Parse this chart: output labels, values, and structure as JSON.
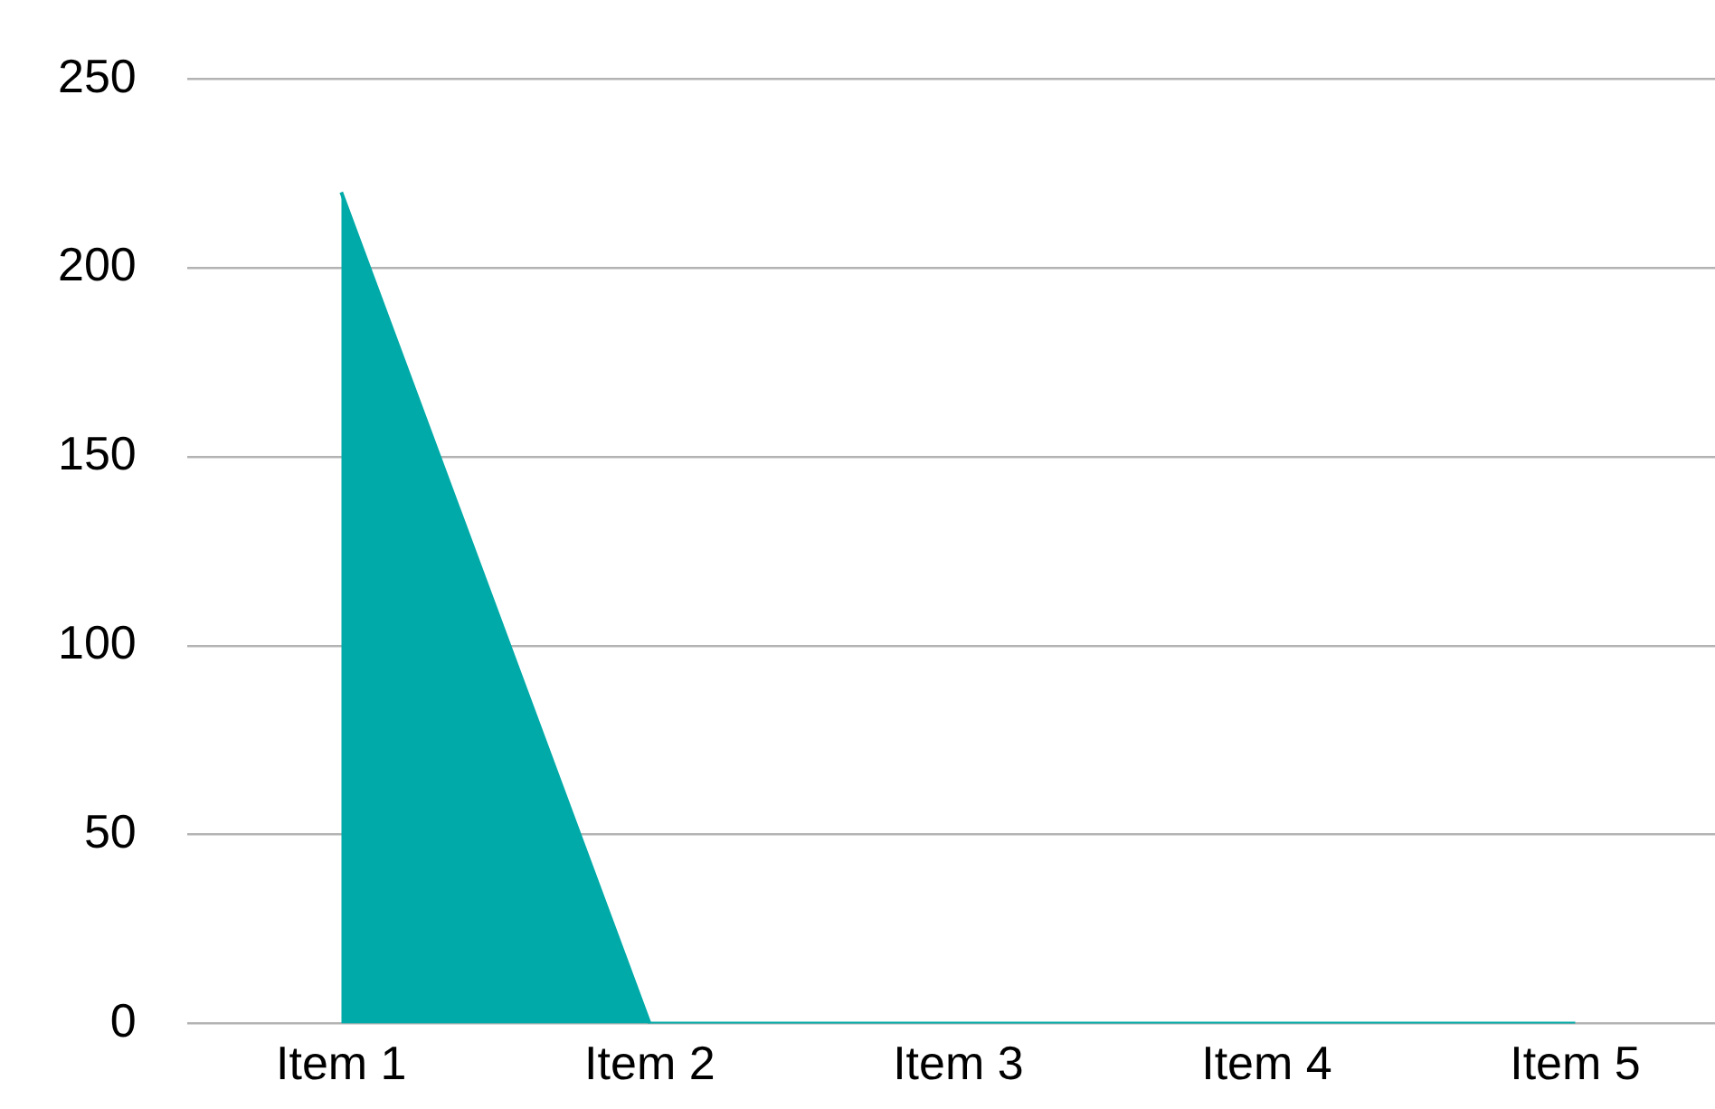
{
  "chart_data": {
    "type": "area",
    "categories": [
      "Item 1",
      "Item 2",
      "Item 3",
      "Item 4",
      "Item 5"
    ],
    "values": [
      220,
      0,
      0,
      0,
      0
    ],
    "color": "#00aaa8",
    "ylim": [
      0,
      250
    ],
    "yticks": [
      0,
      50,
      100,
      150,
      200,
      250
    ],
    "grid": "y",
    "legend": false
  }
}
